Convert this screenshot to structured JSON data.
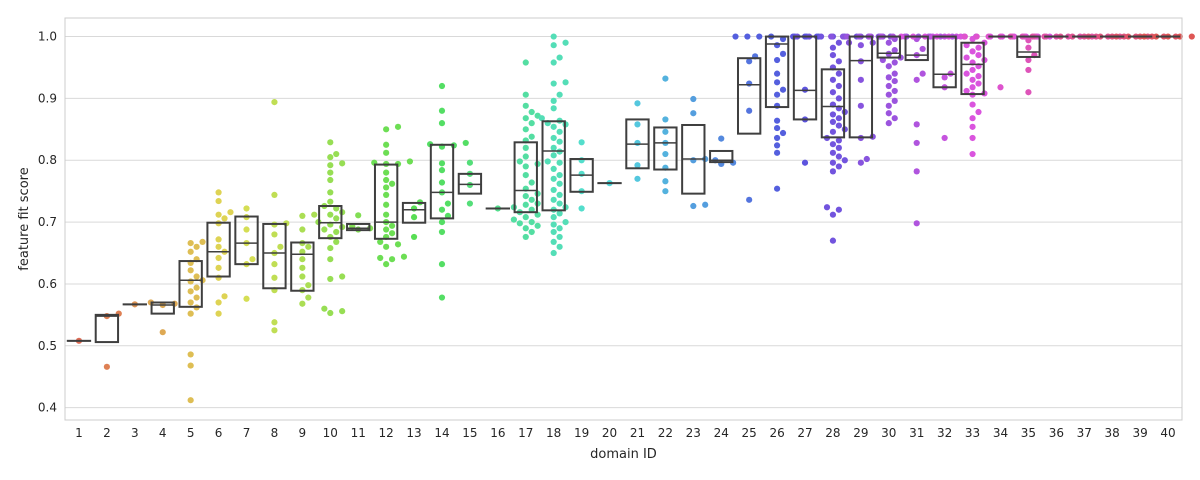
{
  "chart_data": {
    "type": "box+swarm",
    "xlabel": "domain ID",
    "ylabel": "feature fit score",
    "ylim": [
      0.38,
      1.03
    ],
    "yticks": [
      0.4,
      0.5,
      0.6,
      0.7,
      0.8,
      0.9,
      1.0
    ],
    "ytick_labels": [
      "0.4",
      "0.5",
      "0.6",
      "0.7",
      "0.8",
      "0.9",
      "1.0"
    ],
    "grid": "horizontal",
    "categories": [
      "1",
      "2",
      "3",
      "4",
      "5",
      "6",
      "7",
      "8",
      "9",
      "10",
      "11",
      "12",
      "13",
      "14",
      "15",
      "16",
      "17",
      "18",
      "19",
      "20",
      "21",
      "22",
      "23",
      "24",
      "25",
      "26",
      "27",
      "28",
      "29",
      "30",
      "31",
      "32",
      "33",
      "34",
      "35",
      "36",
      "37",
      "38",
      "39",
      "40"
    ],
    "box_stats": [
      {
        "q1": 0.508,
        "med": 0.508,
        "q3": 0.508,
        "whislo": 0.508,
        "whishi": 0.508
      },
      {
        "q1": 0.506,
        "med": 0.548,
        "q3": 0.55,
        "whislo": 0.506,
        "whishi": 0.55
      },
      {
        "q1": 0.567,
        "med": 0.567,
        "q3": 0.567,
        "whislo": 0.567,
        "whishi": 0.567
      },
      {
        "q1": 0.552,
        "med": 0.566,
        "q3": 0.57,
        "whislo": 0.552,
        "whishi": 0.57
      },
      {
        "q1": 0.563,
        "med": 0.606,
        "q3": 0.637,
        "whislo": 0.563,
        "whishi": 0.637
      },
      {
        "q1": 0.612,
        "med": 0.652,
        "q3": 0.699,
        "whislo": 0.612,
        "whishi": 0.699
      },
      {
        "q1": 0.632,
        "med": 0.666,
        "q3": 0.709,
        "whislo": 0.632,
        "whishi": 0.709
      },
      {
        "q1": 0.593,
        "med": 0.65,
        "q3": 0.697,
        "whislo": 0.593,
        "whishi": 0.697
      },
      {
        "q1": 0.589,
        "med": 0.648,
        "q3": 0.667,
        "whislo": 0.589,
        "whishi": 0.667
      },
      {
        "q1": 0.674,
        "med": 0.699,
        "q3": 0.726,
        "whislo": 0.674,
        "whishi": 0.726
      },
      {
        "q1": 0.687,
        "med": 0.69,
        "q3": 0.697,
        "whislo": 0.687,
        "whishi": 0.697
      },
      {
        "q1": 0.673,
        "med": 0.7,
        "q3": 0.793,
        "whislo": 0.673,
        "whishi": 0.793
      },
      {
        "q1": 0.699,
        "med": 0.72,
        "q3": 0.731,
        "whislo": 0.699,
        "whishi": 0.731
      },
      {
        "q1": 0.706,
        "med": 0.748,
        "q3": 0.825,
        "whislo": 0.706,
        "whishi": 0.825
      },
      {
        "q1": 0.746,
        "med": 0.761,
        "q3": 0.778,
        "whislo": 0.746,
        "whishi": 0.778
      },
      {
        "q1": 0.722,
        "med": 0.722,
        "q3": 0.722,
        "whislo": 0.722,
        "whishi": 0.722
      },
      {
        "q1": 0.716,
        "med": 0.751,
        "q3": 0.829,
        "whislo": 0.716,
        "whishi": 0.829
      },
      {
        "q1": 0.719,
        "med": 0.815,
        "q3": 0.863,
        "whislo": 0.719,
        "whishi": 0.863
      },
      {
        "q1": 0.749,
        "med": 0.776,
        "q3": 0.802,
        "whislo": 0.749,
        "whishi": 0.802
      },
      {
        "q1": 0.763,
        "med": 0.763,
        "q3": 0.763,
        "whislo": 0.763,
        "whishi": 0.763
      },
      {
        "q1": 0.787,
        "med": 0.826,
        "q3": 0.866,
        "whislo": 0.787,
        "whishi": 0.866
      },
      {
        "q1": 0.785,
        "med": 0.828,
        "q3": 0.853,
        "whislo": 0.785,
        "whishi": 0.853
      },
      {
        "q1": 0.746,
        "med": 0.802,
        "q3": 0.857,
        "whislo": 0.746,
        "whishi": 0.857
      },
      {
        "q1": 0.797,
        "med": 0.8,
        "q3": 0.815,
        "whislo": 0.797,
        "whishi": 0.815
      },
      {
        "q1": 0.843,
        "med": 0.922,
        "q3": 0.965,
        "whislo": 0.843,
        "whishi": 0.965
      },
      {
        "q1": 0.886,
        "med": 0.988,
        "q3": 1.0,
        "whislo": 0.886,
        "whishi": 1.0
      },
      {
        "q1": 0.866,
        "med": 0.913,
        "q3": 1.0,
        "whislo": 0.866,
        "whishi": 1.0
      },
      {
        "q1": 0.837,
        "med": 0.887,
        "q3": 0.947,
        "whislo": 0.837,
        "whishi": 0.947
      },
      {
        "q1": 0.837,
        "med": 0.961,
        "q3": 1.0,
        "whislo": 0.837,
        "whishi": 1.0
      },
      {
        "q1": 0.966,
        "med": 0.973,
        "q3": 1.0,
        "whislo": 0.966,
        "whishi": 1.0
      },
      {
        "q1": 0.962,
        "med": 0.97,
        "q3": 1.0,
        "whislo": 0.962,
        "whishi": 1.0
      },
      {
        "q1": 0.918,
        "med": 0.939,
        "q3": 1.0,
        "whislo": 0.918,
        "whishi": 1.0
      },
      {
        "q1": 0.907,
        "med": 0.955,
        "q3": 0.99,
        "whislo": 0.907,
        "whishi": 0.99
      },
      {
        "q1": 1.0,
        "med": 1.0,
        "q3": 1.0,
        "whislo": 1.0,
        "whishi": 1.0
      },
      {
        "q1": 0.967,
        "med": 0.975,
        "q3": 1.0,
        "whislo": 0.967,
        "whishi": 1.0
      },
      {
        "q1": 1.0,
        "med": 1.0,
        "q3": 1.0,
        "whislo": 1.0,
        "whishi": 1.0
      },
      {
        "q1": 1.0,
        "med": 1.0,
        "q3": 1.0,
        "whislo": 1.0,
        "whishi": 1.0
      },
      {
        "q1": 1.0,
        "med": 1.0,
        "q3": 1.0,
        "whislo": 1.0,
        "whishi": 1.0
      },
      {
        "q1": 1.0,
        "med": 1.0,
        "q3": 1.0,
        "whislo": 1.0,
        "whishi": 1.0
      },
      {
        "q1": 1.0,
        "med": 1.0,
        "q3": 1.0,
        "whislo": 1.0,
        "whishi": 1.0
      }
    ],
    "points": [
      [
        0.508
      ],
      [
        0.552,
        0.548,
        0.466
      ],
      [
        0.567
      ],
      [
        0.57,
        0.566,
        0.568,
        0.522
      ],
      [
        0.668,
        0.666,
        0.66,
        0.652,
        0.64,
        0.634,
        0.622,
        0.612,
        0.606,
        0.604,
        0.594,
        0.588,
        0.578,
        0.57,
        0.562,
        0.552,
        0.486,
        0.468,
        0.412
      ],
      [
        0.748,
        0.734,
        0.716,
        0.712,
        0.706,
        0.698,
        0.672,
        0.66,
        0.652,
        0.642,
        0.626,
        0.61,
        0.58,
        0.57,
        0.552
      ],
      [
        0.722,
        0.708,
        0.688,
        0.666,
        0.64,
        0.632,
        0.576
      ],
      [
        0.894,
        0.744,
        0.698,
        0.696,
        0.68,
        0.66,
        0.65,
        0.632,
        0.61,
        0.59,
        0.538,
        0.525
      ],
      [
        0.712,
        0.71,
        0.688,
        0.666,
        0.66,
        0.652,
        0.64,
        0.626,
        0.612,
        0.598,
        0.59,
        0.578,
        0.568
      ],
      [
        0.829,
        0.81,
        0.805,
        0.795,
        0.792,
        0.78,
        0.768,
        0.748,
        0.733,
        0.726,
        0.722,
        0.716,
        0.712,
        0.706,
        0.7,
        0.696,
        0.692,
        0.688,
        0.684,
        0.676,
        0.668,
        0.658,
        0.64,
        0.612,
        0.608,
        0.56,
        0.556,
        0.553
      ],
      [
        0.711,
        0.693,
        0.69,
        0.688
      ],
      [
        0.854,
        0.85,
        0.825,
        0.812,
        0.798,
        0.796,
        0.794,
        0.794,
        0.78,
        0.768,
        0.762,
        0.756,
        0.744,
        0.728,
        0.712,
        0.7,
        0.694,
        0.688,
        0.682,
        0.676,
        0.668,
        0.664,
        0.66,
        0.644,
        0.642,
        0.64,
        0.632
      ],
      [
        0.732,
        0.722,
        0.708,
        0.676
      ],
      [
        0.92,
        0.88,
        0.86,
        0.828,
        0.826,
        0.824,
        0.822,
        0.795,
        0.784,
        0.764,
        0.748,
        0.73,
        0.72,
        0.71,
        0.7,
        0.684,
        0.632,
        0.578
      ],
      [
        0.796,
        0.778,
        0.76,
        0.73
      ],
      [
        0.722
      ],
      [
        0.958,
        0.906,
        0.888,
        0.878,
        0.872,
        0.868,
        0.86,
        0.85,
        0.838,
        0.832,
        0.82,
        0.806,
        0.798,
        0.794,
        0.79,
        0.776,
        0.764,
        0.754,
        0.746,
        0.742,
        0.736,
        0.73,
        0.728,
        0.724,
        0.72,
        0.716,
        0.712,
        0.708,
        0.704,
        0.7,
        0.698,
        0.694,
        0.69,
        0.684,
        0.676
      ],
      [
        1.0,
        0.99,
        0.986,
        0.966,
        0.958,
        0.926,
        0.924,
        0.906,
        0.896,
        0.884,
        0.868,
        0.864,
        0.86,
        0.858,
        0.854,
        0.846,
        0.836,
        0.83,
        0.82,
        0.814,
        0.808,
        0.798,
        0.796,
        0.786,
        0.776,
        0.77,
        0.762,
        0.752,
        0.744,
        0.736,
        0.73,
        0.724,
        0.72,
        0.714,
        0.708,
        0.7,
        0.696,
        0.69,
        0.684,
        0.676,
        0.668,
        0.66,
        0.65
      ],
      [
        0.829,
        0.8,
        0.778,
        0.75,
        0.722
      ],
      [
        0.763
      ],
      [
        0.892,
        0.858,
        0.828,
        0.792,
        0.77
      ],
      [
        0.932,
        0.866,
        0.846,
        0.828,
        0.81,
        0.788,
        0.766,
        0.75
      ],
      [
        0.899,
        0.876,
        0.802,
        0.8,
        0.728,
        0.726
      ],
      [
        0.835,
        0.8,
        0.796,
        0.794
      ],
      [
        0.968,
        0.96,
        0.924,
        0.88,
        0.736
      ],
      [
        1.0,
        1.0,
        1.0,
        1.0,
        1.0,
        1.0,
        1.0,
        0.996,
        0.986,
        0.972,
        0.962,
        0.94,
        0.926,
        0.914,
        0.906,
        0.888,
        0.864,
        0.852,
        0.844,
        0.836,
        0.824,
        0.812,
        0.754
      ],
      [
        1.0,
        1.0,
        1.0,
        0.914,
        0.866,
        0.796
      ],
      [
        1.0,
        1.0,
        1.0,
        1.0,
        1.0,
        1.0,
        1.0,
        1.0,
        0.99,
        0.982,
        0.97,
        0.96,
        0.95,
        0.94,
        0.93,
        0.92,
        0.91,
        0.9,
        0.89,
        0.884,
        0.878,
        0.874,
        0.868,
        0.862,
        0.856,
        0.85,
        0.846,
        0.836,
        0.832,
        0.826,
        0.82,
        0.812,
        0.806,
        0.8,
        0.796,
        0.79,
        0.782,
        0.724,
        0.72,
        0.712,
        0.67
      ],
      [
        1.0,
        1.0,
        1.0,
        1.0,
        1.0,
        0.99,
        0.99,
        0.986,
        0.96,
        0.93,
        0.888,
        0.838,
        0.836,
        0.802,
        0.796
      ],
      [
        1.0,
        1.0,
        1.0,
        1.0,
        1.0,
        1.0,
        1.0,
        0.996,
        0.99,
        0.978,
        0.972,
        0.966,
        0.962,
        0.958,
        0.952,
        0.94,
        0.934,
        0.928,
        0.92,
        0.912,
        0.906,
        0.896,
        0.888,
        0.876,
        0.868,
        0.86
      ],
      [
        1.0,
        1.0,
        1.0,
        1.0,
        1.0,
        1.0,
        1.0,
        1.0,
        1.0,
        0.996,
        0.98,
        0.97,
        0.94,
        0.93,
        0.858,
        0.828,
        0.782,
        0.698
      ],
      [
        1.0,
        1.0,
        1.0,
        0.94,
        0.934,
        0.918,
        0.836
      ],
      [
        1.0,
        1.0,
        1.0,
        1.0,
        1.0,
        1.0,
        1.0,
        1.0,
        1.0,
        1.0,
        1.0,
        1.0,
        0.996,
        0.99,
        0.986,
        0.982,
        0.976,
        0.97,
        0.966,
        0.962,
        0.958,
        0.952,
        0.946,
        0.94,
        0.936,
        0.93,
        0.924,
        0.918,
        0.912,
        0.908,
        0.906,
        0.89,
        0.878,
        0.868,
        0.854,
        0.836,
        0.81
      ],
      [
        1.0,
        1.0,
        1.0,
        1.0,
        1.0,
        1.0,
        1.0,
        0.918
      ],
      [
        1.0,
        1.0,
        1.0,
        1.0,
        0.994,
        0.982,
        0.97,
        0.962,
        0.946,
        0.91
      ],
      [
        1.0,
        1.0,
        1.0,
        1.0,
        1.0,
        1.0
      ],
      [
        1.0,
        1.0,
        1.0,
        1.0,
        1.0,
        1.0
      ],
      [
        1.0,
        1.0,
        1.0,
        1.0,
        1.0,
        1.0
      ],
      [
        1.0,
        1.0,
        1.0,
        1.0,
        1.0,
        1.0
      ],
      [
        1.0,
        1.0,
        1.0,
        1.0,
        1.0,
        1.0
      ]
    ],
    "colors": {
      "palette_hue_start": 10,
      "grid": "#d9d9d9",
      "box_edge": "#3f3f3f",
      "axes_edge": "#cccccc",
      "background": "#ffffff"
    }
  }
}
